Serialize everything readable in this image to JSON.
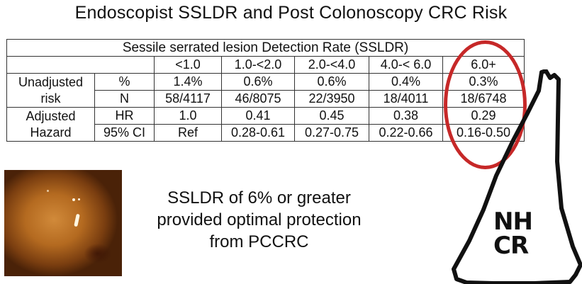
{
  "title": "Endoscopist SSLDR and Post Colonoscopy CRC Risk",
  "table": {
    "span_header": "Sessile serrated lesion Detection Rate (SSLDR)",
    "columns": [
      "<1.0",
      "1.0-<2.0",
      "2.0-<4.0",
      "4.0-< 6.0",
      "6.0+"
    ],
    "groups": [
      {
        "label_line1": "Unadjusted",
        "label_line2": "risk",
        "rows": [
          {
            "metric": "%",
            "values": [
              "1.4%",
              "0.6%",
              "0.6%",
              "0.4%",
              "0.3%"
            ]
          },
          {
            "metric": "N",
            "values": [
              "58/4117",
              "46/8075",
              "22/3950",
              "18/4011",
              "18/6748"
            ]
          }
        ]
      },
      {
        "label_line1": "Adjusted",
        "label_line2": "Hazard",
        "rows": [
          {
            "metric": "HR",
            "values": [
              "1.0",
              "0.41",
              "0.45",
              "0.38",
              "0.29"
            ]
          },
          {
            "metric": "95% CI",
            "values": [
              "Ref",
              "0.28-0.61",
              "0.27-0.75",
              "0.22-0.66",
              "0.16-0.50"
            ]
          }
        ]
      }
    ],
    "highlight_color": "#c62828"
  },
  "caption": {
    "line1": "SSLDR of 6% or greater",
    "line2": "provided optimal protection",
    "line3": "from PCCRC"
  },
  "logo": {
    "line1": "NH",
    "line2": "CR",
    "icon": "new-hampshire-state-outline-icon"
  },
  "photo": {
    "icon": "endoscopy-polyp-image"
  }
}
